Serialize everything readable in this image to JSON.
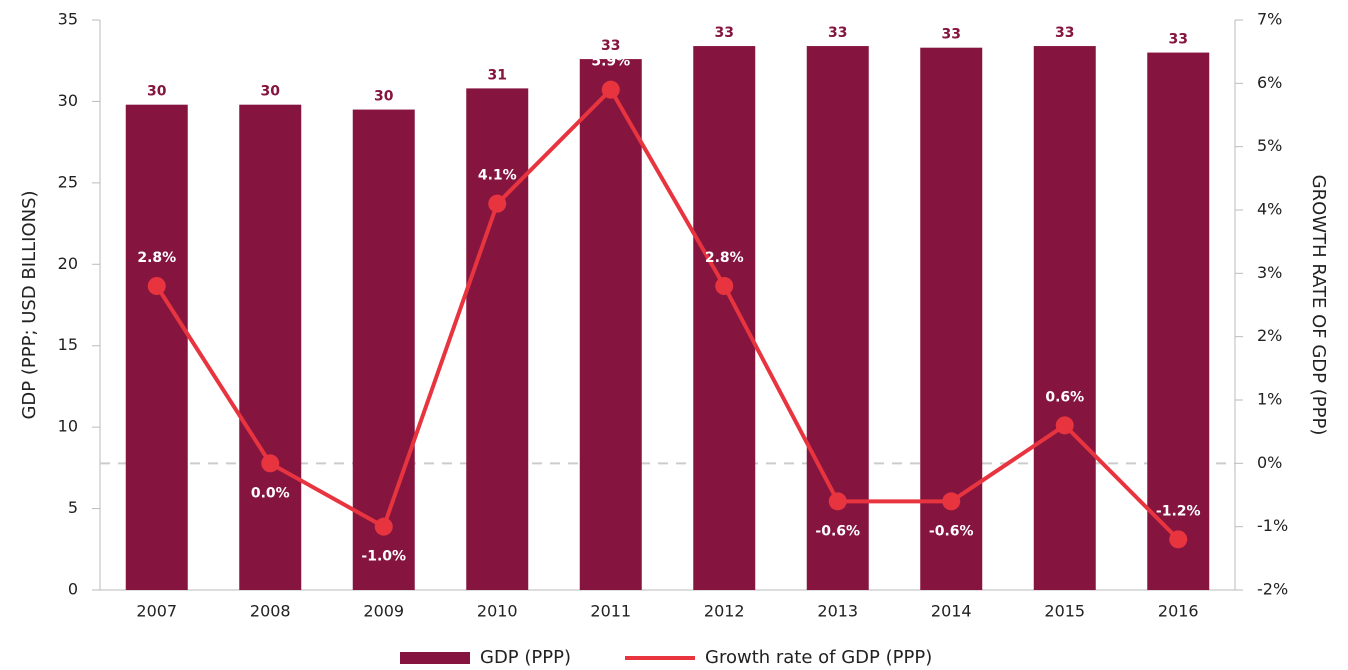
{
  "chart_data": {
    "type": "bar+line",
    "categories": [
      "2007",
      "2008",
      "2009",
      "2010",
      "2011",
      "2012",
      "2013",
      "2014",
      "2015",
      "2016"
    ],
    "series": [
      {
        "name": "GDP (PPP)",
        "type": "bar",
        "color": "#85153f",
        "axis": "y",
        "values": [
          29.8,
          29.8,
          29.5,
          30.8,
          32.6,
          33.4,
          33.4,
          33.3,
          33.4,
          33.0
        ],
        "value_labels": [
          "30",
          "30",
          "30",
          "31",
          "33",
          "33",
          "33",
          "33",
          "33",
          "33"
        ]
      },
      {
        "name": "Growth rate of GDP (PPP)",
        "type": "line",
        "color": "#e8343f",
        "axis": "y2",
        "values": [
          2.8,
          0.0,
          -1.0,
          4.1,
          5.9,
          2.8,
          -0.6,
          -0.6,
          0.6,
          -1.2
        ],
        "value_labels": [
          "2.8%",
          "0.0%",
          "-1.0%",
          "4.1%",
          "5.9%",
          "2.8%",
          "-0.6%",
          "-0.6%",
          "0.6%",
          "-1.2%"
        ]
      }
    ],
    "y_label": "GDP (PPP; USD BILLIONS)",
    "y2_label": "GROWTH RATE OF GDP (PPP)",
    "ylim": [
      0,
      35
    ],
    "yticks": [
      0,
      5,
      10,
      15,
      20,
      25,
      30,
      35
    ],
    "y2lim": [
      -2,
      7
    ],
    "y2ticks": [
      {
        "value": -2,
        "label": "-2%"
      },
      {
        "value": -1,
        "label": "-1%"
      },
      {
        "value": 0,
        "label": "0%"
      },
      {
        "value": 1,
        "label": "1%"
      },
      {
        "value": 2,
        "label": "2%"
      },
      {
        "value": 3,
        "label": "3%"
      },
      {
        "value": 4,
        "label": "4%"
      },
      {
        "value": 5,
        "label": "5%"
      },
      {
        "value": 6,
        "label": "6%"
      },
      {
        "value": 7,
        "label": "7%"
      }
    ],
    "legend": "bottom"
  }
}
